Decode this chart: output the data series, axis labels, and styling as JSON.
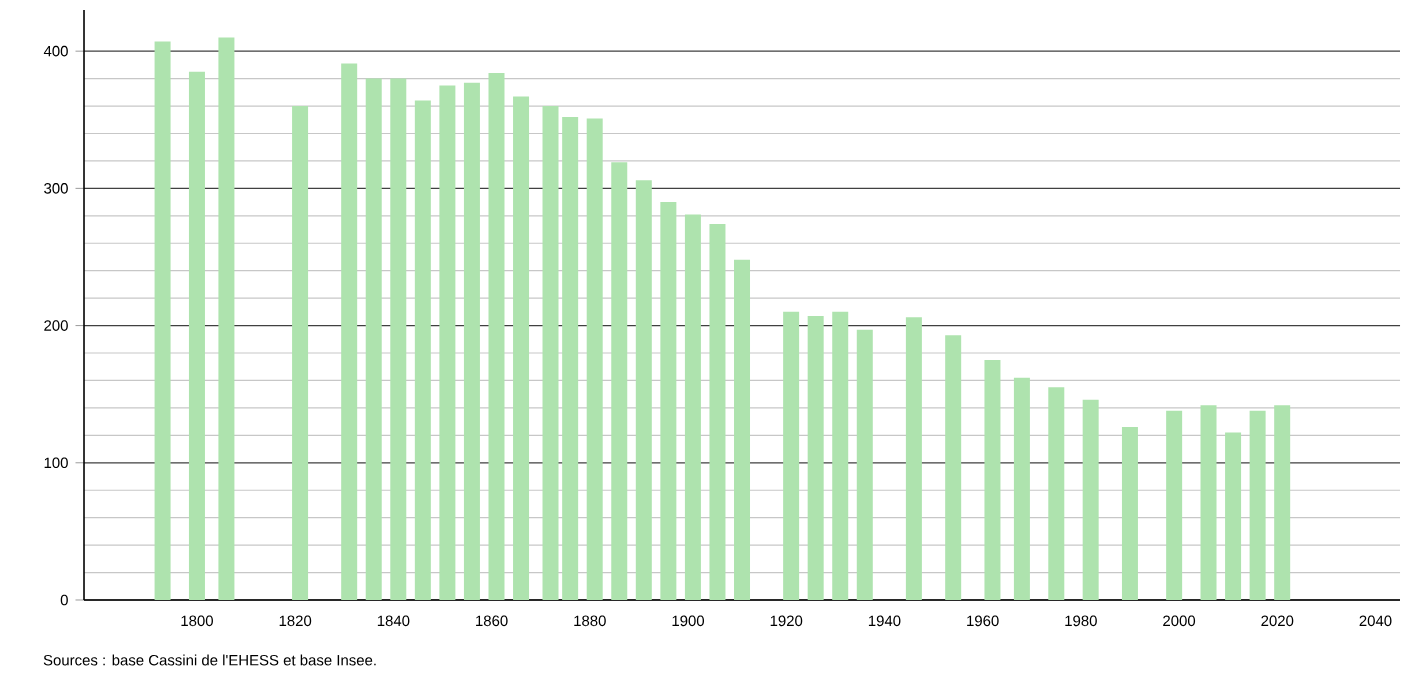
{
  "chart_data": {
    "type": "bar",
    "x": [
      1793,
      1800,
      1806,
      1821,
      1831,
      1836,
      1841,
      1846,
      1851,
      1856,
      1861,
      1866,
      1872,
      1876,
      1881,
      1886,
      1891,
      1896,
      1901,
      1906,
      1911,
      1921,
      1926,
      1931,
      1936,
      1946,
      1954,
      1962,
      1968,
      1975,
      1982,
      1990,
      1999,
      2006,
      2011,
      2016,
      2021
    ],
    "values": [
      407,
      385,
      410,
      360,
      391,
      380,
      380,
      364,
      375,
      377,
      384,
      367,
      360,
      352,
      351,
      319,
      306,
      290,
      281,
      274,
      248,
      210,
      207,
      210,
      197,
      206,
      193,
      175,
      162,
      155,
      146,
      126,
      138,
      142,
      122,
      138,
      142
    ],
    "color": "#aee3ae",
    "xlim": [
      1777,
      2045
    ],
    "xticks": [
      1800,
      1820,
      1840,
      1860,
      1880,
      1900,
      1920,
      1940,
      1960,
      1980,
      2000,
      2020,
      2040
    ],
    "ylim": [
      0,
      430
    ],
    "yticks": [
      0,
      100,
      200,
      300,
      400
    ],
    "grid": "y",
    "annotations": [
      "Sources : base Cassini de l'EHESS et base Insee."
    ]
  }
}
